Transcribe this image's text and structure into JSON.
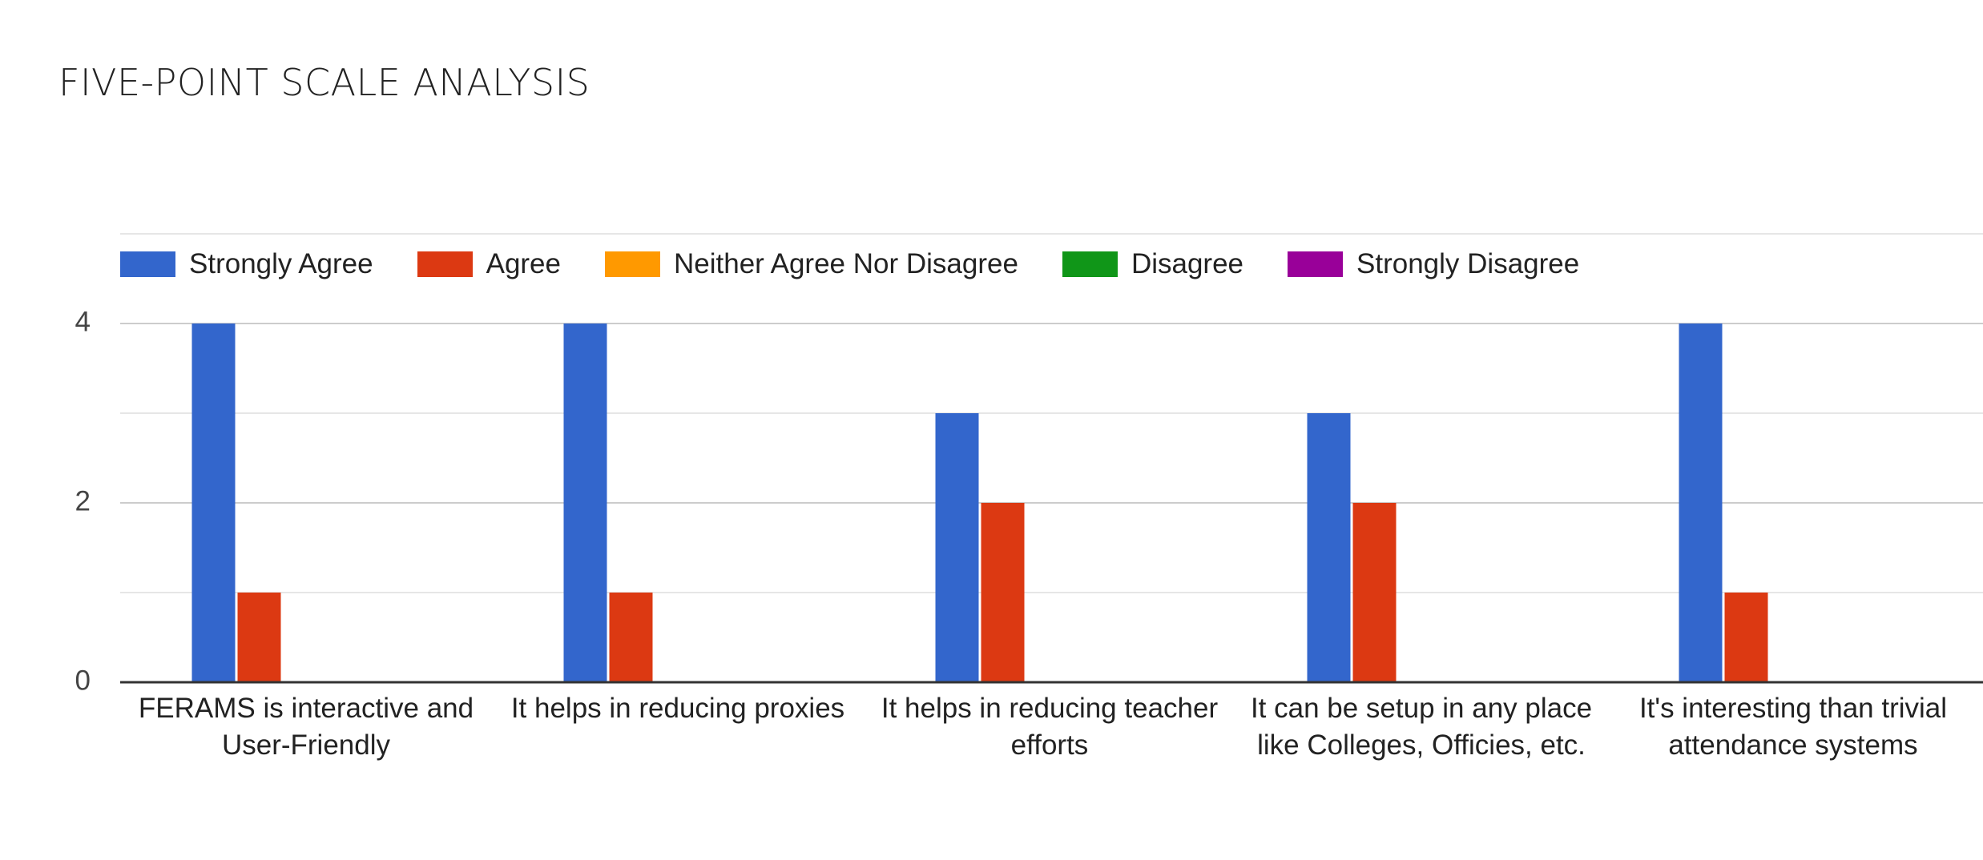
{
  "chart_data": {
    "type": "bar",
    "title": "FIVE-POINT SCALE ANALYSIS",
    "categories": [
      "FERAMS is interactive and User-Friendly",
      "It helps in reducing proxies",
      "It helps in reducing teacher efforts",
      "It can be setup in any place like Colleges, Officies, etc.",
      "It's interesting than trivial attendance systems"
    ],
    "series": [
      {
        "name": "Strongly Agree",
        "color": "#3366cc",
        "values": [
          4,
          4,
          3,
          3,
          4
        ]
      },
      {
        "name": "Agree",
        "color": "#dc3912",
        "values": [
          1,
          1,
          2,
          2,
          1
        ]
      },
      {
        "name": "Neither Agree Nor Disagree",
        "color": "#ff9900",
        "values": [
          0,
          0,
          0,
          0,
          0
        ]
      },
      {
        "name": "Disagree",
        "color": "#109618",
        "values": [
          0,
          0,
          0,
          0,
          0
        ]
      },
      {
        "name": "Strongly Disagree",
        "color": "#990099",
        "values": [
          0,
          0,
          0,
          0,
          0
        ]
      }
    ],
    "ylim": [
      0,
      4
    ],
    "yticks": [
      0,
      2,
      4
    ],
    "minor_gridlines": [
      1,
      3
    ],
    "grid": true,
    "legend": "top"
  }
}
